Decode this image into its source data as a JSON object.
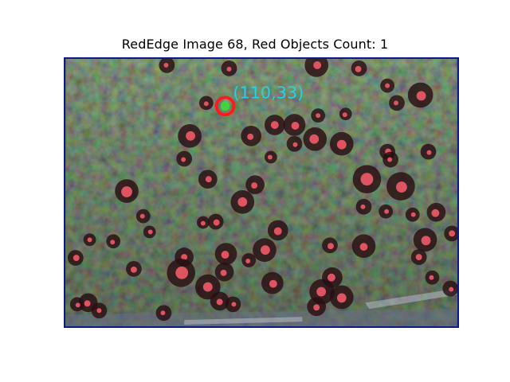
{
  "figure": {
    "title": "RedEdge Image 68, Red Objects Count: 1"
  },
  "detection": {
    "label": "(110,33)",
    "label_color": "#22d3e6",
    "circle_color": "#ff1a1a",
    "center_color": "#3ddc3d"
  },
  "colors": {
    "frame_border": "#0a1a8c",
    "blob_halo": "#2a0d12",
    "blob_core": "#f25a68"
  }
}
